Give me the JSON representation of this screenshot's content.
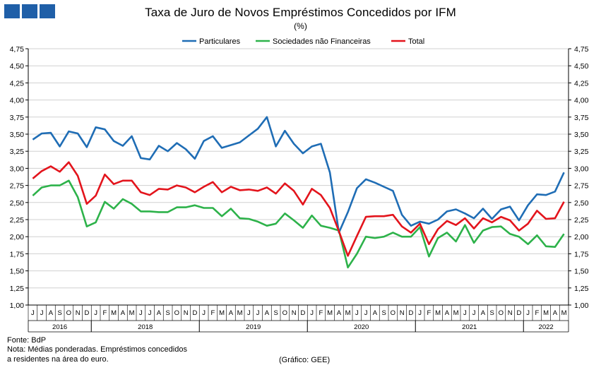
{
  "header": {
    "title": "Taxa de Juro de Novos Empréstimos Concedidos por IFM",
    "subtitle": "(%)"
  },
  "footer": {
    "source": "Fonte: BdP",
    "note_line1": "Nota: Médias ponderadas. Empréstimos concedidos",
    "note_line2": "a residentes na área do euro.",
    "credit": "(Gráfico: GEE)"
  },
  "chart_data": {
    "type": "line",
    "ylim": [
      1.0,
      4.75
    ],
    "yticks": [
      "1,00",
      "1,25",
      "1,50",
      "1,75",
      "2,00",
      "2,25",
      "2,50",
      "2,75",
      "3,00",
      "3,25",
      "3,50",
      "3,75",
      "4,00",
      "4,25",
      "4,50",
      "4,75"
    ],
    "grid": true,
    "legend_position": "top",
    "x": [
      "J",
      "J",
      "A",
      "S",
      "O",
      "N",
      "D",
      "J",
      "F",
      "M",
      "A",
      "M",
      "J",
      "J",
      "A",
      "S",
      "O",
      "N",
      "D",
      "J",
      "F",
      "M",
      "A",
      "M",
      "J",
      "J",
      "A",
      "S",
      "O",
      "N",
      "D",
      "J",
      "F",
      "M",
      "A",
      "M",
      "J",
      "J",
      "A",
      "S",
      "O",
      "N",
      "D",
      "J",
      "F",
      "M",
      "A",
      "M",
      "J",
      "J",
      "A",
      "S",
      "O",
      "N",
      "D",
      "J",
      "F",
      "M",
      "A",
      "M"
    ],
    "years": [
      {
        "label": "2016",
        "start": 0,
        "end": 7
      },
      {
        "label": "2018",
        "start": 7,
        "end": 19
      },
      {
        "label": "2019",
        "start": 19,
        "end": 31
      },
      {
        "label": "2020",
        "start": 31,
        "end": 43
      },
      {
        "label": "2021",
        "start": 43,
        "end": 55
      },
      {
        "label": "2022",
        "start": 55,
        "end": 60
      }
    ],
    "series": [
      {
        "name": "Particulares",
        "color": "#1f6db5",
        "values": [
          3.42,
          3.51,
          3.52,
          3.32,
          3.54,
          3.51,
          3.31,
          3.6,
          3.57,
          3.4,
          3.33,
          3.47,
          3.15,
          3.13,
          3.33,
          3.25,
          3.37,
          3.28,
          3.14,
          3.4,
          3.47,
          3.3,
          3.34,
          3.38,
          3.48,
          3.58,
          3.75,
          3.32,
          3.55,
          3.36,
          3.22,
          3.32,
          3.36,
          2.94,
          2.06,
          2.36,
          2.71,
          2.84,
          2.79,
          2.73,
          2.67,
          2.32,
          2.16,
          2.22,
          2.19,
          2.25,
          2.37,
          2.4,
          2.34,
          2.27,
          2.41,
          2.26,
          2.4,
          2.44,
          2.24,
          2.46,
          2.62,
          2.61,
          2.66,
          2.94
        ]
      },
      {
        "name": "Sociedades não Financeiras",
        "color": "#2db24a",
        "values": [
          2.6,
          2.72,
          2.75,
          2.75,
          2.82,
          2.58,
          2.15,
          2.21,
          2.51,
          2.41,
          2.55,
          2.48,
          2.37,
          2.37,
          2.36,
          2.36,
          2.43,
          2.43,
          2.46,
          2.42,
          2.42,
          2.3,
          2.41,
          2.27,
          2.26,
          2.22,
          2.16,
          2.19,
          2.34,
          2.24,
          2.13,
          2.31,
          2.16,
          2.13,
          2.09,
          1.55,
          1.75,
          2.0,
          1.98,
          2.0,
          2.06,
          2.0,
          2.0,
          2.14,
          1.71,
          1.98,
          2.06,
          1.93,
          2.17,
          1.91,
          2.09,
          2.14,
          2.15,
          2.04,
          2.0,
          1.89,
          2.02,
          1.86,
          1.85,
          2.04
        ]
      },
      {
        "name": "Total",
        "color": "#e3141c",
        "values": [
          2.85,
          2.96,
          3.03,
          2.95,
          3.09,
          2.89,
          2.48,
          2.6,
          2.91,
          2.77,
          2.82,
          2.82,
          2.65,
          2.61,
          2.7,
          2.69,
          2.75,
          2.72,
          2.65,
          2.73,
          2.8,
          2.65,
          2.73,
          2.68,
          2.69,
          2.67,
          2.72,
          2.63,
          2.78,
          2.67,
          2.47,
          2.7,
          2.61,
          2.42,
          2.08,
          1.72,
          2.01,
          2.29,
          2.3,
          2.3,
          2.32,
          2.15,
          2.06,
          2.19,
          1.89,
          2.11,
          2.23,
          2.17,
          2.27,
          2.12,
          2.27,
          2.21,
          2.29,
          2.24,
          2.09,
          2.19,
          2.38,
          2.26,
          2.27,
          2.51
        ]
      }
    ]
  }
}
